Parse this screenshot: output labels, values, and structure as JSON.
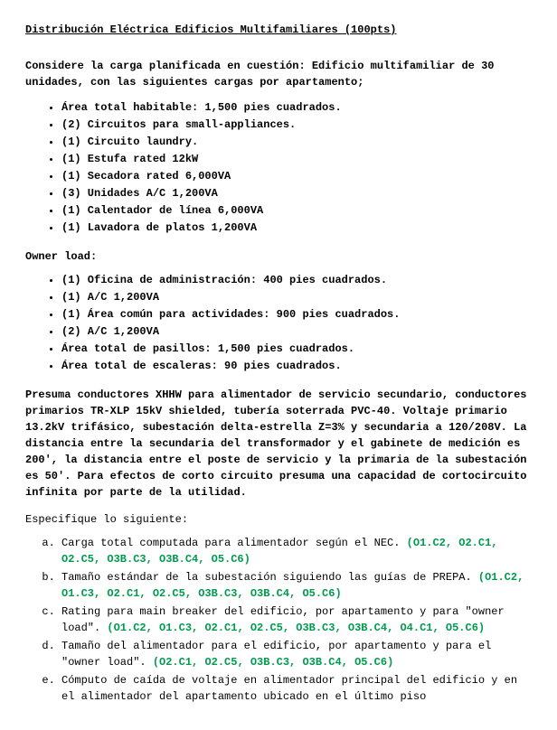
{
  "title": "Distribución Eléctrica Edificios Multifamiliares (100pts)",
  "intro": "Considere la carga planificada en cuestión: Edificio multifamiliar de 30 unidades, con las siguientes cargas por apartamento;",
  "apt_loads": [
    "Área total habitable: 1,500 pies cuadrados.",
    "(2) Circuitos para small-appliances.",
    "(1) Circuito laundry.",
    "(1) Estufa rated 12kW",
    "(1) Secadora rated 6,000VA",
    "(3) Unidades A/C 1,200VA",
    "(1) Calentador de línea 6,000VA",
    "(1) Lavadora de platos 1,200VA"
  ],
  "owner_label": "Owner load:",
  "owner_loads": [
    "(1) Oficina de administración: 400 pies cuadrados.",
    "(1) A/C 1,200VA",
    "(1) Área común para actividades: 900 pies cuadrados.",
    "(2) A/C 1,200VA",
    "Área total de pasillos: 1,500 pies cuadrados.",
    "Área total de escaleras: 90 pies cuadrados."
  ],
  "assumptions": "Presuma conductores XHHW para alimentador de servicio secundario, conductores primarios TR-XLP 15kV shielded, tubería soterrada PVC-40. Voltaje primario 13.2kV trifásico, subestación delta-estrella Z=3% y secundaria a 120/208V. La distancia entre la secundaria del transformador y el gabinete de medición es 200', la distancia entre el poste de servicio y la primaria de la subestación es 50'. Para efectos de corto circuito presuma una capacidad de cortocircuito infinita por parte de la utilidad.",
  "spec_intro": "Especifique lo siguiente:",
  "items": [
    {
      "text": "Carga total computada para alimentador según el NEC. ",
      "ref": "(O1.C2, O2.C1, O2.C5, O3B.C3, O3B.C4, O5.C6)"
    },
    {
      "text": "Tamaño estándar de la subestación siguiendo las guías de PREPA. ",
      "ref": "(O1.C2, O1.C3, O2.C1, O2.C5, O3B.C3, O3B.C4, O5.C6)"
    },
    {
      "text": "Rating para main breaker del edificio, por apartamento y para \"owner load\". ",
      "ref": "(O1.C2, O1.C3, O2.C1, O2.C5, O3B.C3, O3B.C4, O4.C1, O5.C6)"
    },
    {
      "text": "Tamaño del alimentador para el edificio, por apartamento y para el \"owner load\". ",
      "ref": "(O2.C1, O2.C5, O3B.C3, O3B.C4, O5.C6)"
    },
    {
      "text": "Cómputo de caída de voltaje en alimentador principal del edificio y en el alimentador del apartamento ubicado en el último piso",
      "ref": ""
    }
  ]
}
